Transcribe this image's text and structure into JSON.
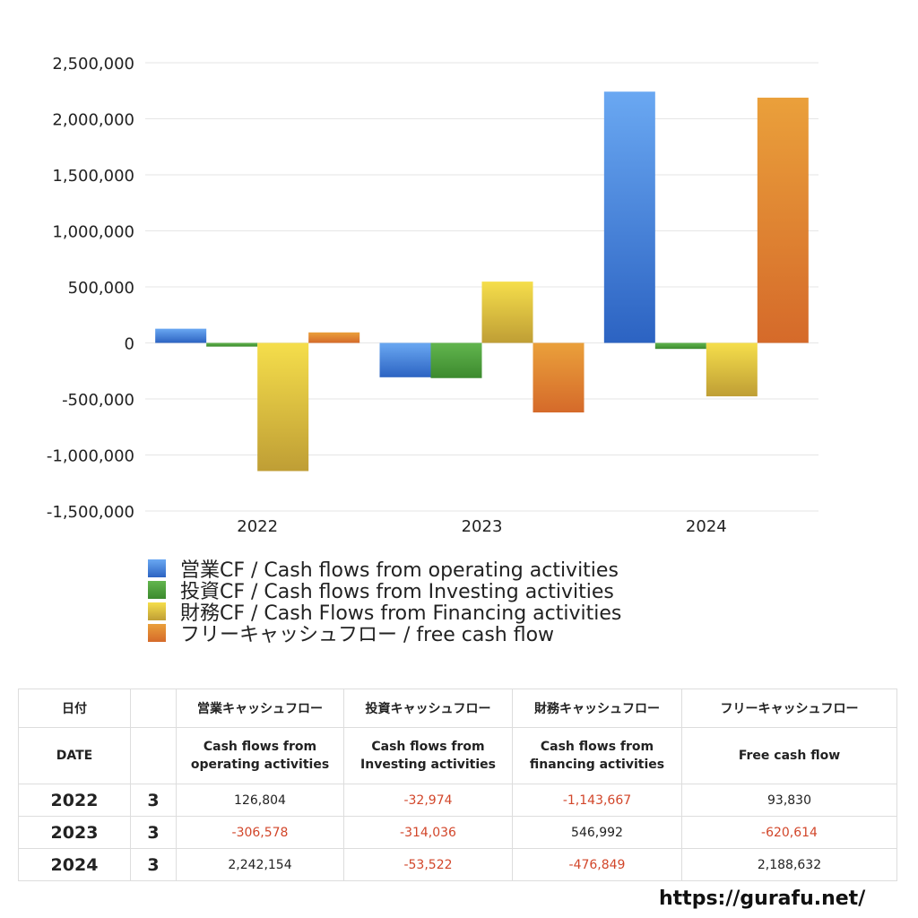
{
  "chart_data": {
    "type": "bar",
    "categories": [
      "2022",
      "2023",
      "2024"
    ],
    "series": [
      {
        "name": "営業CF / Cash flows from operating activities",
        "values": [
          126804,
          -306578,
          2242154
        ],
        "color": "#3a78d6"
      },
      {
        "name": "投資CF / Cash flows from Investing activities",
        "values": [
          -32974,
          -314036,
          -53522
        ],
        "color": "#4ea23c"
      },
      {
        "name": "財務CF / Cash Flows from Financing activities",
        "values": [
          -1143667,
          546992,
          -476849
        ],
        "color": "#e3c83e"
      },
      {
        "name": "フリーキャッシュフロー / free cash flow",
        "values": [
          93830,
          -620614,
          2188632
        ],
        "color": "#e0802f"
      }
    ],
    "ylim": [
      -1500000,
      2500000
    ],
    "yticks": [
      2500000,
      2000000,
      1500000,
      1000000,
      500000,
      0,
      -500000,
      -1000000,
      -1500000
    ],
    "ytick_labels": [
      "2,500,000",
      "2,000,000",
      "1,500,000",
      "1,000,000",
      "500,000",
      "0",
      "-500,000",
      "-1,000,000",
      "-1,500,000"
    ],
    "grid": true,
    "legend": "bottom-left"
  },
  "table": {
    "headers_jp": [
      "日付",
      "",
      "営業キャッシュフロー",
      "投資キャッシュフロー",
      "財務キャッシュフロー",
      "フリーキャッシュフロー"
    ],
    "headers_en": [
      "DATE",
      "",
      "Cash flows from\noperating activities",
      "Cash flows from\nInvesting activities",
      "Cash flows from\nfinancing activities",
      "Free cash flow"
    ],
    "rows": [
      {
        "year": "2022",
        "month": "3",
        "values": [
          "126,804",
          "-32,974",
          "-1,143,667",
          "93,830"
        ]
      },
      {
        "year": "2023",
        "month": "3",
        "values": [
          "-306,578",
          "-314,036",
          "546,992",
          "-620,614"
        ]
      },
      {
        "year": "2024",
        "month": "3",
        "values": [
          "2,242,154",
          "-53,522",
          "-476,849",
          "2,188,632"
        ]
      }
    ]
  },
  "site_url": "https://gurafu.net/"
}
